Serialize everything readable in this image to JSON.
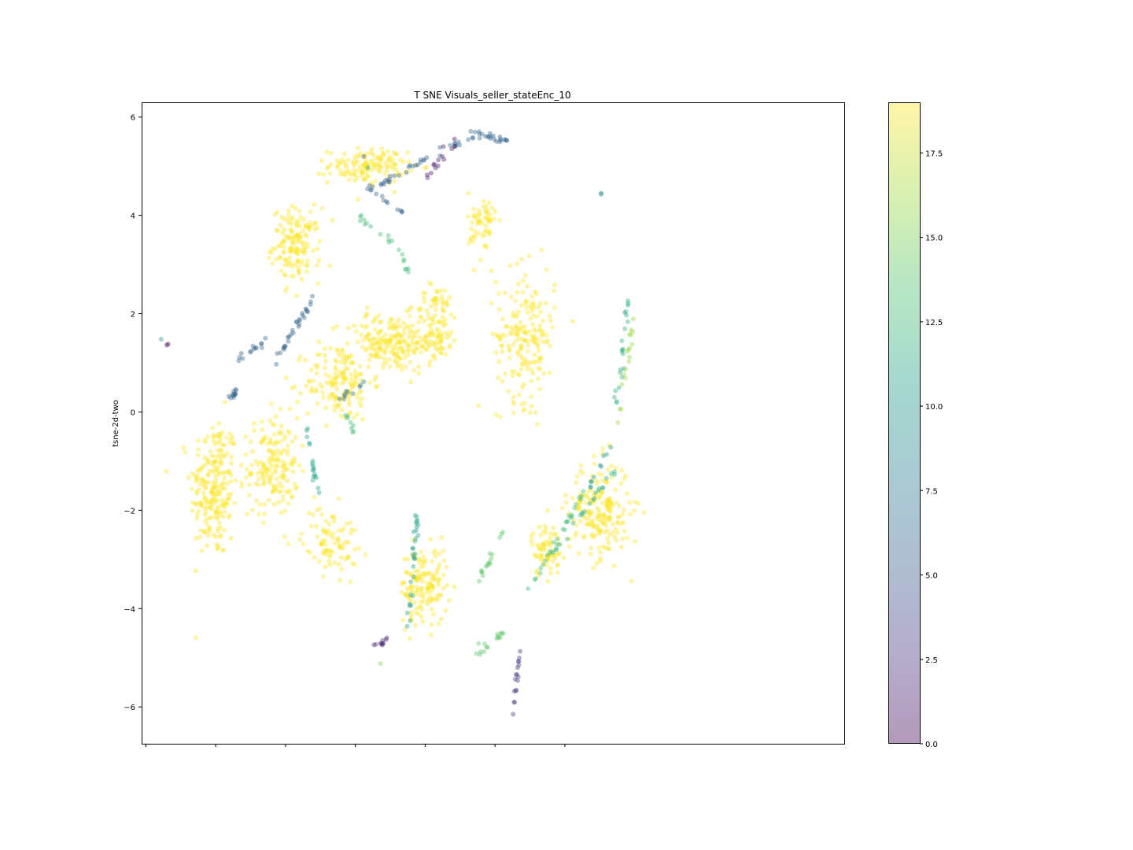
{
  "chart_data": {
    "type": "scatter",
    "title": "T SNE Visuals_seller_stateEnc_10",
    "xlabel": "",
    "ylabel": "tsne-2d-two",
    "xlim": [
      -9.65,
      15.5
    ],
    "ylim": [
      -6.75,
      6.3
    ],
    "xticks": [
      -9.5,
      -7,
      -4.5,
      -2,
      0.5,
      3,
      5.5
    ],
    "xtick_labels": [
      "",
      "",
      "",
      "",
      "",
      "",
      ""
    ],
    "yticks": [
      -6,
      -4,
      -2,
      0,
      2,
      4,
      6
    ],
    "ytick_labels": [
      "−6",
      "−4",
      "−2",
      "0",
      "2",
      "4",
      "6"
    ],
    "grid": false,
    "marker_alpha": 0.4,
    "colorbar": {
      "colormap": "viridis",
      "range": [
        0,
        19
      ],
      "ticks": [
        0.0,
        2.5,
        5.0,
        7.5,
        10.0,
        12.5,
        15.0,
        17.5
      ],
      "tick_labels": [
        "0.0",
        "2.5",
        "5.0",
        "7.5",
        "10.0",
        "12.5",
        "15.0",
        "17.5"
      ]
    },
    "clusters": [
      {
        "shape": "blob",
        "center": [
          -7.05,
          -1.55
        ],
        "spread": [
          0.85,
          1.45
        ],
        "count": 230,
        "color_value": 19
      },
      {
        "shape": "blob",
        "center": [
          -4.95,
          -1.1
        ],
        "spread": [
          0.9,
          1.0
        ],
        "count": 170,
        "color_value": 19
      },
      {
        "shape": "blob",
        "center": [
          -4.1,
          3.4
        ],
        "spread": [
          0.85,
          0.75
        ],
        "count": 150,
        "color_value": 19
      },
      {
        "shape": "blob",
        "center": [
          -1.55,
          5.0
        ],
        "spread": [
          1.4,
          0.35
        ],
        "count": 140,
        "color_value": 19
      },
      {
        "shape": "blob",
        "center": [
          -0.75,
          1.4
        ],
        "spread": [
          1.6,
          0.6
        ],
        "count": 200,
        "color_value": 19
      },
      {
        "shape": "blob",
        "center": [
          -2.6,
          0.6
        ],
        "spread": [
          1.2,
          0.8
        ],
        "count": 150,
        "color_value": 19
      },
      {
        "shape": "blob",
        "center": [
          0.9,
          1.8
        ],
        "spread": [
          0.8,
          0.8
        ],
        "count": 110,
        "color_value": 19
      },
      {
        "shape": "blob",
        "center": [
          4.1,
          1.55
        ],
        "spread": [
          1.05,
          1.35
        ],
        "count": 190,
        "color_value": 19
      },
      {
        "shape": "blob",
        "center": [
          6.75,
          -2.0
        ],
        "spread": [
          1.1,
          1.0
        ],
        "count": 200,
        "color_value": 19
      },
      {
        "shape": "blob",
        "center": [
          0.45,
          -3.55
        ],
        "spread": [
          0.85,
          0.8
        ],
        "count": 150,
        "color_value": 19
      },
      {
        "shape": "blob",
        "center": [
          -2.9,
          -2.6
        ],
        "spread": [
          1.0,
          0.7
        ],
        "count": 90,
        "color_value": 19
      },
      {
        "shape": "blob",
        "center": [
          4.85,
          -2.8
        ],
        "spread": [
          0.55,
          0.55
        ],
        "count": 70,
        "color_value": 19
      },
      {
        "shape": "blob",
        "center": [
          2.55,
          3.8
        ],
        "spread": [
          0.5,
          0.7
        ],
        "count": 60,
        "color_value": 19
      },
      {
        "shape": "line",
        "from": [
          -1.6,
          4.5
        ],
        "to": [
          2.25,
          5.65
        ],
        "count": 40,
        "color_value": 6
      },
      {
        "shape": "line",
        "from": [
          2.25,
          5.65
        ],
        "to": [
          3.45,
          5.55
        ],
        "count": 22,
        "color_value": 6
      },
      {
        "shape": "line",
        "from": [
          0.4,
          4.7
        ],
        "to": [
          1.5,
          5.4
        ],
        "count": 12,
        "color_value": 1
      },
      {
        "shape": "line",
        "from": [
          -4.9,
          1.0
        ],
        "to": [
          -3.45,
          2.4
        ],
        "count": 30,
        "color_value": 6
      },
      {
        "shape": "line",
        "from": [
          -6.3,
          1.05
        ],
        "to": [
          -5.2,
          1.45
        ],
        "count": 14,
        "color_value": 6
      },
      {
        "shape": "line",
        "from": [
          -6.5,
          0.2
        ],
        "to": [
          -6.3,
          0.45
        ],
        "count": 12,
        "color_value": 6
      },
      {
        "shape": "line",
        "from": [
          -2.6,
          0.25
        ],
        "to": [
          -1.7,
          0.6
        ],
        "count": 10,
        "color_value": 7
      },
      {
        "shape": "line",
        "from": [
          -3.75,
          -0.3
        ],
        "to": [
          -3.35,
          -1.6
        ],
        "count": 18,
        "color_value": 11
      },
      {
        "shape": "line",
        "from": [
          -2.35,
          -0.05
        ],
        "to": [
          -2.1,
          -0.45
        ],
        "count": 8,
        "color_value": 13
      },
      {
        "shape": "line",
        "from": [
          0.2,
          -2.05
        ],
        "to": [
          -0.1,
          -4.4
        ],
        "count": 30,
        "color_value": 11
      },
      {
        "shape": "line",
        "from": [
          -1.35,
          -4.75
        ],
        "to": [
          -0.75,
          -4.6
        ],
        "count": 10,
        "color_value": 2
      },
      {
        "shape": "line",
        "from": [
          2.15,
          -3.65
        ],
        "to": [
          3.3,
          -2.45
        ],
        "count": 16,
        "color_value": 14
      },
      {
        "shape": "line",
        "from": [
          4.15,
          -3.7
        ],
        "to": [
          6.2,
          -1.6
        ],
        "count": 28,
        "color_value": 13
      },
      {
        "shape": "line",
        "from": [
          5.0,
          -2.95
        ],
        "to": [
          7.35,
          -1.1
        ],
        "count": 22,
        "color_value": 12
      },
      {
        "shape": "line",
        "from": [
          2.2,
          -4.95
        ],
        "to": [
          3.3,
          -4.5
        ],
        "count": 16,
        "color_value": 14
      },
      {
        "shape": "line",
        "from": [
          3.9,
          -4.75
        ],
        "to": [
          3.7,
          -5.95
        ],
        "count": 16,
        "color_value": 3
      },
      {
        "shape": "line",
        "from": [
          7.75,
          2.2
        ],
        "to": [
          7.3,
          0.0
        ],
        "count": 22,
        "color_value": 12
      },
      {
        "shape": "line",
        "from": [
          7.95,
          2.0
        ],
        "to": [
          7.35,
          -0.4
        ],
        "count": 18,
        "color_value": 16
      },
      {
        "shape": "line",
        "from": [
          7.1,
          -0.7
        ],
        "to": [
          6.35,
          -1.6
        ],
        "count": 10,
        "color_value": 10
      },
      {
        "shape": "line",
        "from": [
          -1.85,
          3.95
        ],
        "to": [
          -0.5,
          3.35
        ],
        "count": 12,
        "color_value": 13
      },
      {
        "shape": "line",
        "from": [
          -0.5,
          3.35
        ],
        "to": [
          0.0,
          2.7
        ],
        "count": 8,
        "color_value": 13
      },
      {
        "shape": "line",
        "from": [
          -1.55,
          4.5
        ],
        "to": [
          -0.1,
          4.0
        ],
        "count": 10,
        "color_value": 6
      }
    ],
    "points": [
      {
        "x": -8.95,
        "y": 1.48,
        "value": 9
      },
      {
        "x": -8.7,
        "y": 1.38,
        "value": 0
      },
      {
        "x": -8.75,
        "y": 1.36,
        "value": 0
      },
      {
        "x": 1.55,
        "y": 5.55,
        "value": 0
      },
      {
        "x": 1.15,
        "y": 5.4,
        "value": 1
      },
      {
        "x": -1.7,
        "y": 5.2,
        "value": 4
      },
      {
        "x": -1.55,
        "y": 4.97,
        "value": 11
      },
      {
        "x": 6.8,
        "y": 4.45,
        "value": 9
      },
      {
        "x": 6.8,
        "y": 4.43,
        "value": 9
      },
      {
        "x": -1.1,
        "y": -5.12,
        "value": 15
      },
      {
        "x": 3.65,
        "y": -6.15,
        "value": 3
      }
    ]
  }
}
